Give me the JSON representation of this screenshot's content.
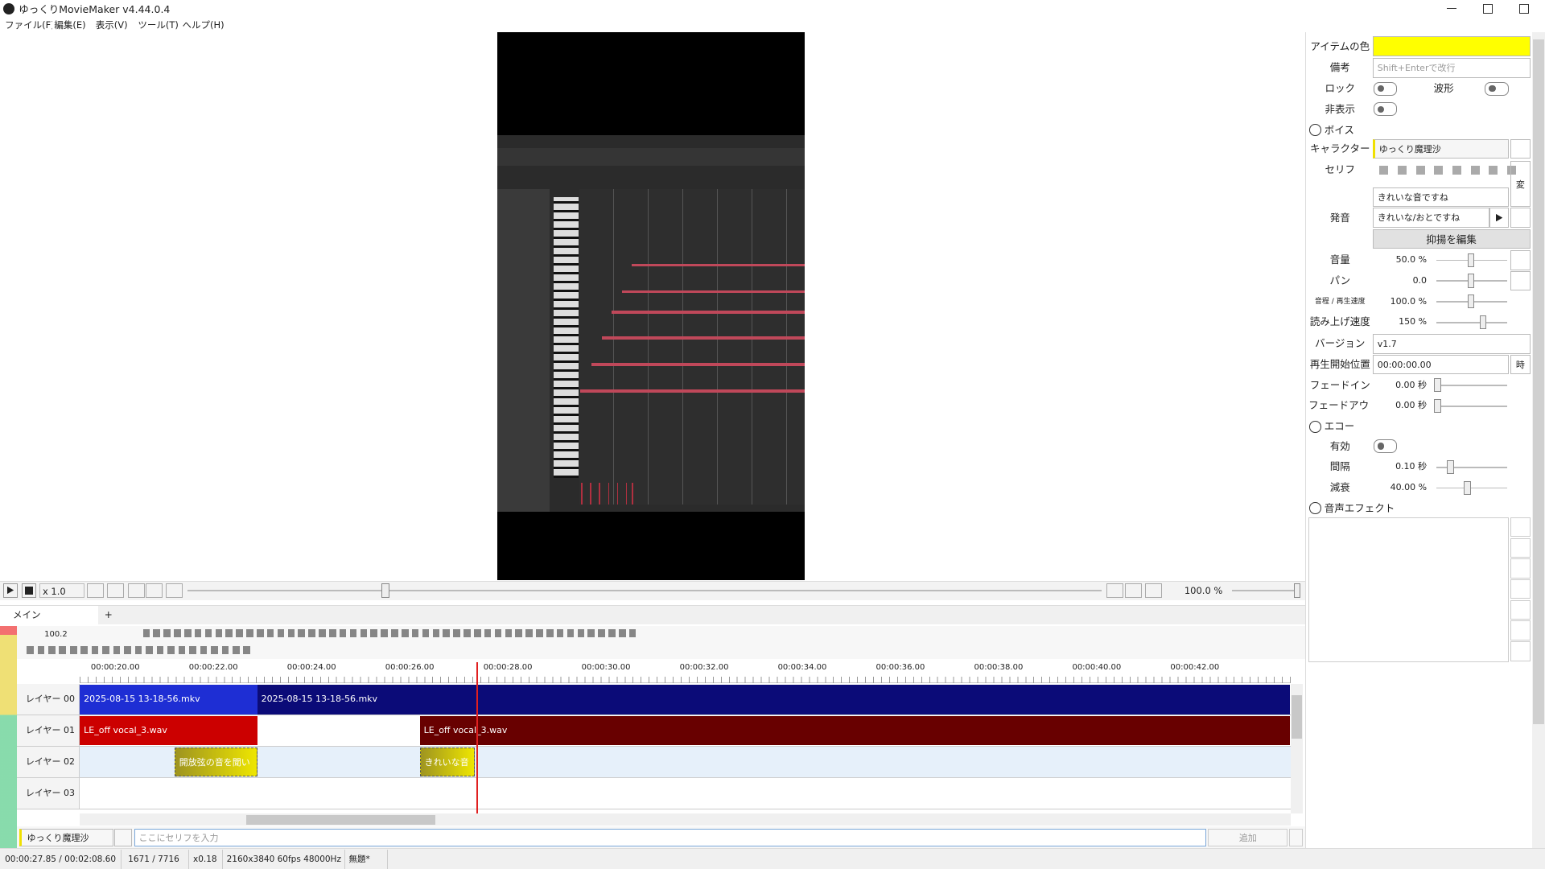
{
  "window": {
    "title": "ゆっくりMovieMaker v4.44.0.4",
    "menu": [
      "ファイル(F)",
      "編集(E)",
      "表示(V)",
      "ツール(T)",
      "ヘルプ(H)"
    ]
  },
  "player": {
    "speed": "x 1.0",
    "volume": "100.0 %"
  },
  "timeline": {
    "tab": "メイン",
    "new_tab": "+",
    "zoom": "100.2",
    "ruler": [
      "00:00:20.00",
      "00:00:22.00",
      "00:00:24.00",
      "00:00:26.00",
      "00:00:28.00",
      "00:00:30.00",
      "00:00:32.00",
      "00:00:34.00",
      "00:00:36.00",
      "00:00:38.00",
      "00:00:40.00",
      "00:00:42.00"
    ],
    "layers": [
      {
        "name": "レイヤー 00",
        "clips": [
          "2025-08-15 13-18-56.mkv",
          "2025-08-15 13-18-56.mkv"
        ]
      },
      {
        "name": "レイヤー 01",
        "clips": [
          "LE_off vocal_3.wav",
          "LE_off vocal_3.wav"
        ]
      },
      {
        "name": "レイヤー 02",
        "clips": [
          "開放弦の音を聞い",
          "きれいな音"
        ]
      },
      {
        "name": "レイヤー 03",
        "clips": []
      }
    ]
  },
  "input": {
    "character": "ゆっくり魔理沙",
    "placeholder": "ここにセリフを入力",
    "button": "追加"
  },
  "status": {
    "time": "00:00:27.85 / 00:02:08.60",
    "frames": "1671 / 7716",
    "zoom": "x0.18",
    "format": "2160x3840 60fps 48000Hz",
    "project": "無題*"
  },
  "properties": {
    "rows": [
      {
        "label": "アイテムの色"
      },
      {
        "label": "備考",
        "placeholder": "Shift+Enterで改行"
      },
      {
        "label": "ロック"
      },
      {
        "label": "波形"
      },
      {
        "label": "非表示"
      },
      {
        "label": "ボイス"
      },
      {
        "label": "キャラクター",
        "value": "ゆっくり魔理沙"
      },
      {
        "label": "セリフ",
        "value": "きれいな音ですね",
        "button": "変"
      },
      {
        "label": "発音",
        "value": "きれいな/おとですね"
      },
      {
        "label": "抑揚を編集"
      },
      {
        "label": "音量",
        "value": "50.0 %"
      },
      {
        "label": "パン",
        "value": "0.0"
      },
      {
        "label": "音程 / 再生速度",
        "value": "100.0 %"
      },
      {
        "label": "読み上げ速度",
        "value": "150 %"
      },
      {
        "label": "バージョン",
        "value": "v1.7"
      },
      {
        "label": "再生開始位置",
        "value": "00:00:00.00",
        "button": "時"
      },
      {
        "label": "フェードイン",
        "value": "0.00 秒"
      },
      {
        "label": "フェードアウト",
        "value": "0.00 秒"
      },
      {
        "label": "エコー"
      },
      {
        "label": "有効"
      },
      {
        "label": "間隔",
        "value": "0.10 秒"
      },
      {
        "label": "減衰",
        "value": "40.00 %"
      },
      {
        "label": "音声エフェクト"
      }
    ]
  }
}
